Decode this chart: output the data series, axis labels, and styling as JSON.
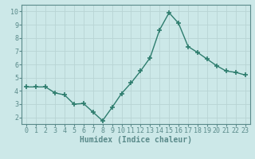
{
  "x": [
    0,
    1,
    2,
    3,
    4,
    5,
    6,
    7,
    8,
    9,
    10,
    11,
    12,
    13,
    14,
    15,
    16,
    17,
    18,
    19,
    20,
    21,
    22,
    23
  ],
  "y": [
    4.3,
    4.3,
    4.3,
    3.85,
    3.7,
    3.0,
    3.05,
    2.4,
    1.75,
    2.75,
    3.8,
    4.6,
    5.5,
    6.5,
    8.6,
    9.9,
    9.1,
    7.35,
    6.9,
    6.4,
    5.9,
    5.5,
    5.4,
    5.2
  ],
  "color": "#2e7d6e",
  "bg_color": "#cce8e8",
  "grid_color": "#b8d4d4",
  "xlabel": "Humidex (Indice chaleur)",
  "ylim": [
    1.5,
    10.5
  ],
  "xlim": [
    -0.5,
    23.5
  ],
  "yticks": [
    2,
    3,
    4,
    5,
    6,
    7,
    8,
    9,
    10
  ],
  "xticks": [
    0,
    1,
    2,
    3,
    4,
    5,
    6,
    7,
    8,
    9,
    10,
    11,
    12,
    13,
    14,
    15,
    16,
    17,
    18,
    19,
    20,
    21,
    22,
    23
  ],
  "marker": "+",
  "markersize": 4,
  "linewidth": 1.0,
  "xlabel_fontsize": 7,
  "tick_fontsize": 6,
  "spine_color": "#5a8a8a"
}
